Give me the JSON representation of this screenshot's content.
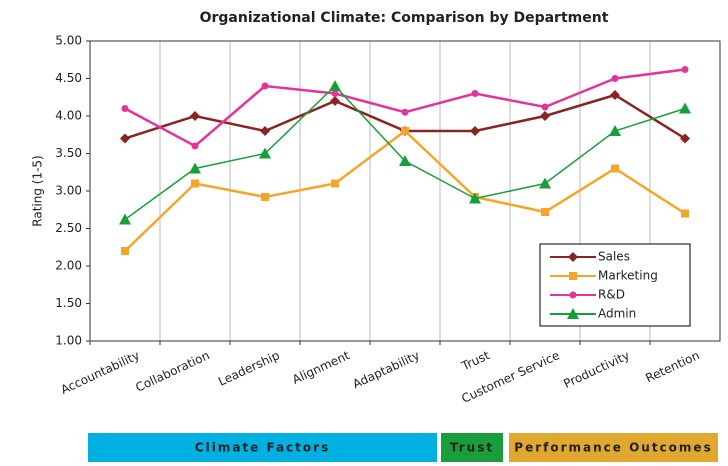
{
  "chart_data": {
    "type": "line",
    "title": "Organizational Climate: Comparison by Department",
    "y_label": "Rating (1-5)",
    "categories": [
      "Accountability",
      "Collaboration",
      "Leadership",
      "Alignment",
      "Adaptability",
      "Trust",
      "Customer Service",
      "Productivity",
      "Retention"
    ],
    "series": [
      {
        "name": "Sales",
        "color": "#8b2323",
        "marker": "diamond",
        "values": [
          3.7,
          4.0,
          3.8,
          4.2,
          3.8,
          3.8,
          4.0,
          4.28,
          3.7
        ]
      },
      {
        "name": "Marketing",
        "color": "#f5a52a",
        "marker": "square",
        "values": [
          2.2,
          3.1,
          2.92,
          3.1,
          3.8,
          2.92,
          2.72,
          3.3,
          2.7
        ]
      },
      {
        "name": "R&D",
        "color": "#e0359a",
        "marker": "circle",
        "values": [
          4.1,
          3.6,
          4.4,
          4.3,
          4.05,
          4.3,
          4.12,
          4.5,
          4.62
        ]
      },
      {
        "name": "Admin",
        "color": "#1a9e3c",
        "marker": "triangle",
        "values": [
          2.62,
          3.3,
          3.5,
          4.4,
          3.4,
          2.9,
          3.1,
          3.8,
          4.1
        ]
      }
    ],
    "ylim": [
      1,
      5
    ],
    "yticks": [
      {
        "value": 1,
        "label": "1.00"
      },
      {
        "value": 1.5,
        "label": "1.50"
      },
      {
        "value": 2,
        "label": "2.00"
      },
      {
        "value": 2.5,
        "label": "2.50"
      },
      {
        "value": 3,
        "label": "3.00"
      },
      {
        "value": 3.5,
        "label": "3.50"
      },
      {
        "value": 4,
        "label": "4.00"
      },
      {
        "value": 4.5,
        "label": "4.50"
      },
      {
        "value": 5,
        "label": "5.00"
      }
    ],
    "legend": "lower right",
    "groups": [
      {
        "label": "Climate Factors",
        "color": "#00b0e0"
      },
      {
        "label": "Trust",
        "color": "#1a9e3c"
      },
      {
        "label": "Performance Outcomes",
        "color": "#e0a82e"
      }
    ]
  }
}
